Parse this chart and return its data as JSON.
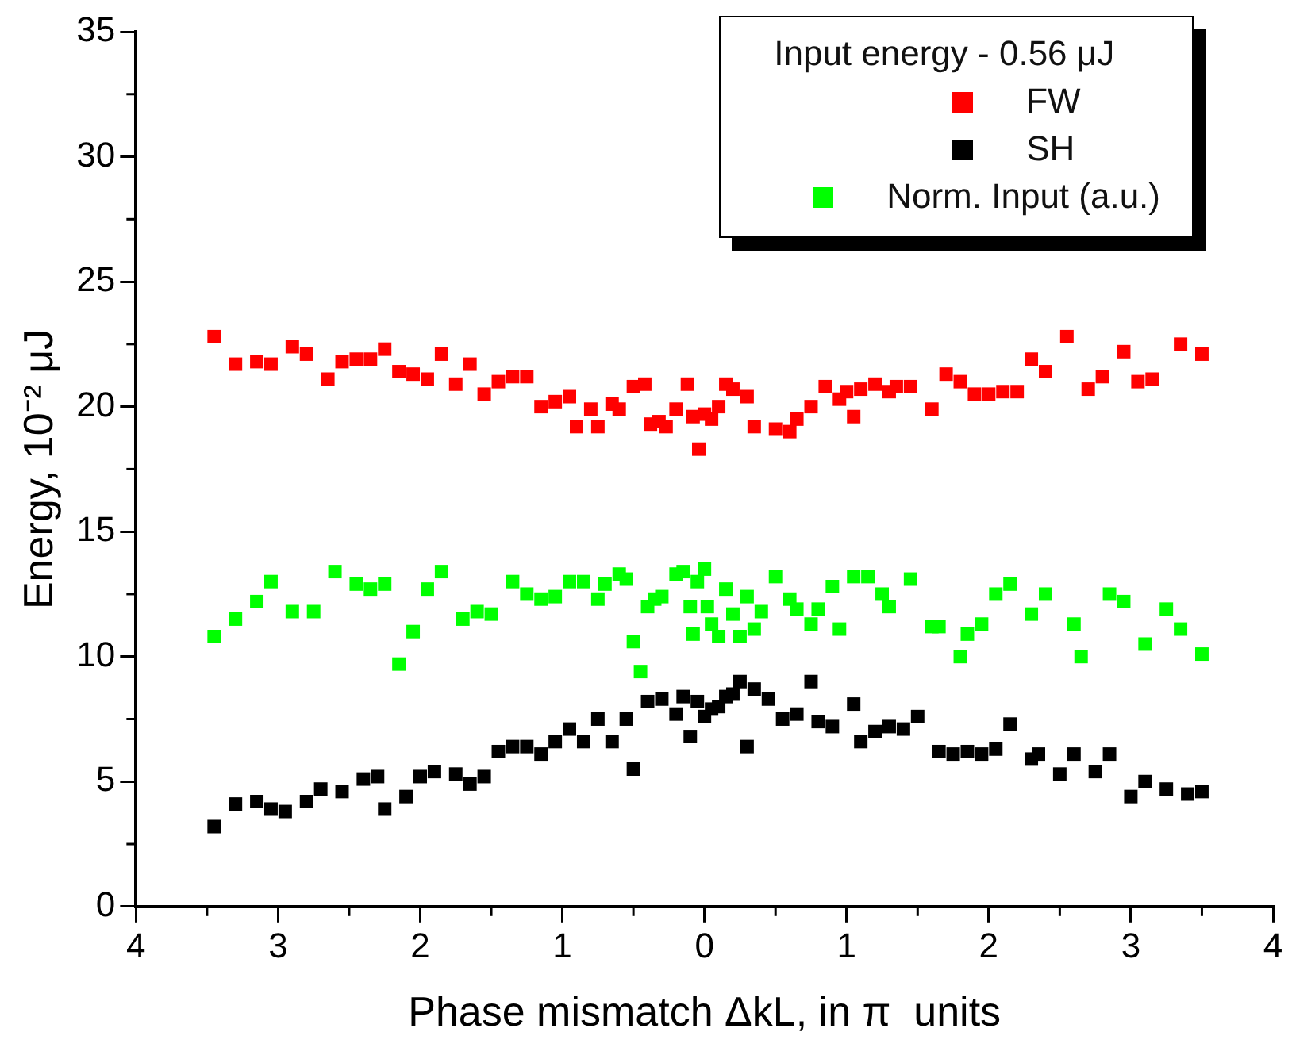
{
  "chart_data": {
    "type": "scatter",
    "xlabel": "Phase mismatch ΔkL, in π  units",
    "ylabel": "Energy, 10⁻² μJ",
    "legend_title": "Input energy - 0.56 μJ",
    "legend": "top right",
    "marker": "square",
    "grid": false,
    "xlim": [
      -4,
      4
    ],
    "xticks": [
      {
        "value": -4,
        "label": "4"
      },
      {
        "value": -3,
        "label": "3"
      },
      {
        "value": -2,
        "label": "2"
      },
      {
        "value": -1,
        "label": "1"
      },
      0,
      1,
      2,
      3,
      4
    ],
    "ylim": [
      0,
      35
    ],
    "yticks": [
      0,
      5,
      10,
      15,
      20,
      25,
      30,
      35
    ],
    "series": [
      {
        "name": "FW",
        "color": "#ff0000",
        "x": [
          -3.45,
          -3.3,
          -3.15,
          -3.05,
          -2.9,
          -2.8,
          -2.65,
          -2.55,
          -2.45,
          -2.35,
          -2.25,
          -2.15,
          -2.05,
          -1.95,
          -1.85,
          -1.75,
          -1.65,
          -1.55,
          -1.45,
          -1.35,
          -1.25,
          -1.15,
          -1.05,
          -0.95,
          -0.9,
          -0.8,
          -0.75,
          -0.65,
          -0.6,
          -0.5,
          -0.42,
          -0.38,
          -0.32,
          -0.27,
          -0.2,
          -0.12,
          -0.08,
          -0.04,
          0,
          0.05,
          0.1,
          0.15,
          0.2,
          0.3,
          0.35,
          0.5,
          0.6,
          0.65,
          0.75,
          0.85,
          0.95,
          1.0,
          1.05,
          1.1,
          1.2,
          1.3,
          1.35,
          1.45,
          1.6,
          1.7,
          1.8,
          1.9,
          2.0,
          2.1,
          2.2,
          2.3,
          2.4,
          2.55,
          2.7,
          2.8,
          2.95,
          3.05,
          3.15,
          3.35,
          3.5
        ],
        "values": [
          22.8,
          21.7,
          21.8,
          21.7,
          22.4,
          22.1,
          21.1,
          21.8,
          21.9,
          21.9,
          22.3,
          21.4,
          21.3,
          21.1,
          22.1,
          20.9,
          21.7,
          20.5,
          21.0,
          21.2,
          21.2,
          20.0,
          20.2,
          20.4,
          19.2,
          19.9,
          19.2,
          20.1,
          19.9,
          20.8,
          20.9,
          19.3,
          19.4,
          19.2,
          19.9,
          20.9,
          19.6,
          18.3,
          19.7,
          19.5,
          20.0,
          20.9,
          20.7,
          20.4,
          19.2,
          19.1,
          19.0,
          19.5,
          20.0,
          20.8,
          20.3,
          20.6,
          19.6,
          20.7,
          20.9,
          20.6,
          20.8,
          20.8,
          19.9,
          21.3,
          21.0,
          20.5,
          20.5,
          20.6,
          20.6,
          21.9,
          21.4,
          22.8,
          20.7,
          21.2,
          22.2,
          21.0,
          21.1,
          22.5,
          22.1
        ]
      },
      {
        "name": "SH",
        "color": "#000000",
        "x": [
          -3.45,
          -3.3,
          -3.15,
          -3.05,
          -2.95,
          -2.8,
          -2.7,
          -2.55,
          -2.4,
          -2.3,
          -2.25,
          -2.1,
          -2.0,
          -1.9,
          -1.75,
          -1.65,
          -1.55,
          -1.45,
          -1.35,
          -1.25,
          -1.15,
          -1.05,
          -0.95,
          -0.85,
          -0.75,
          -0.65,
          -0.55,
          -0.5,
          -0.4,
          -0.3,
          -0.2,
          -0.15,
          -0.1,
          -0.05,
          0,
          0.05,
          0.1,
          0.15,
          0.2,
          0.25,
          0.3,
          0.35,
          0.45,
          0.55,
          0.65,
          0.75,
          0.8,
          0.9,
          1.05,
          1.1,
          1.2,
          1.3,
          1.4,
          1.5,
          1.65,
          1.75,
          1.85,
          1.95,
          2.05,
          2.15,
          2.3,
          2.35,
          2.5,
          2.6,
          2.75,
          2.85,
          3.0,
          3.1,
          3.25,
          3.4,
          3.5
        ],
        "values": [
          3.2,
          4.1,
          4.2,
          3.9,
          3.8,
          4.2,
          4.7,
          4.6,
          5.1,
          5.2,
          3.9,
          4.4,
          5.2,
          5.4,
          5.3,
          4.9,
          5.2,
          6.2,
          6.4,
          6.4,
          6.1,
          6.6,
          7.1,
          6.6,
          7.5,
          6.6,
          7.5,
          5.5,
          8.2,
          8.3,
          7.7,
          8.4,
          6.8,
          8.2,
          7.6,
          7.9,
          8.0,
          8.4,
          8.5,
          9.0,
          6.4,
          8.7,
          8.3,
          7.5,
          7.7,
          9.0,
          7.4,
          7.2,
          8.1,
          6.6,
          7.0,
          7.2,
          7.1,
          7.6,
          6.2,
          6.1,
          6.2,
          6.1,
          6.3,
          7.3,
          5.9,
          6.1,
          5.3,
          6.1,
          5.4,
          6.1,
          4.4,
          5.0,
          4.7,
          4.5,
          4.6
        ]
      },
      {
        "name": "Norm. Input (a.u.)",
        "color": "#00ff00",
        "x": [
          -3.45,
          -3.3,
          -3.15,
          -3.05,
          -2.9,
          -2.75,
          -2.6,
          -2.45,
          -2.35,
          -2.25,
          -2.15,
          -2.05,
          -1.95,
          -1.85,
          -1.7,
          -1.6,
          -1.5,
          -1.35,
          -1.25,
          -1.15,
          -1.05,
          -0.95,
          -0.85,
          -0.75,
          -0.7,
          -0.6,
          -0.55,
          -0.5,
          -0.45,
          -0.4,
          -0.35,
          -0.3,
          -0.2,
          -0.15,
          -0.1,
          -0.08,
          -0.05,
          0,
          0.02,
          0.05,
          0.1,
          0.15,
          0.2,
          0.25,
          0.3,
          0.35,
          0.4,
          0.5,
          0.6,
          0.65,
          0.75,
          0.8,
          0.9,
          0.95,
          1.05,
          1.15,
          1.25,
          1.3,
          1.45,
          1.6,
          1.65,
          1.8,
          1.85,
          1.95,
          2.05,
          2.15,
          2.3,
          2.4,
          2.6,
          2.65,
          2.85,
          2.95,
          3.1,
          3.25,
          3.35,
          3.5
        ],
        "values": [
          10.8,
          11.5,
          12.2,
          13.0,
          11.8,
          11.8,
          13.4,
          12.9,
          12.7,
          12.9,
          9.7,
          11.0,
          12.7,
          13.4,
          11.5,
          11.8,
          11.7,
          13.0,
          12.5,
          12.3,
          12.4,
          13.0,
          13.0,
          12.3,
          12.9,
          13.3,
          13.1,
          10.6,
          9.4,
          12.0,
          12.3,
          12.4,
          13.3,
          13.4,
          12.0,
          10.9,
          13.0,
          13.5,
          12.0,
          11.3,
          10.8,
          12.7,
          11.7,
          10.8,
          12.4,
          11.1,
          11.8,
          13.2,
          12.3,
          11.9,
          11.3,
          11.9,
          12.8,
          11.1,
          13.2,
          13.2,
          12.5,
          12.0,
          13.1,
          11.2,
          11.2,
          10.0,
          10.9,
          11.3,
          12.5,
          12.9,
          11.7,
          12.5,
          11.3,
          10.0,
          12.5,
          12.2,
          10.5,
          11.9,
          11.1,
          10.1
        ]
      }
    ]
  }
}
